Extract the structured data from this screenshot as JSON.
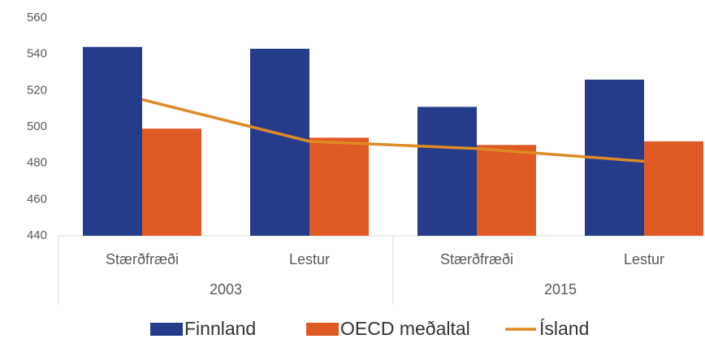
{
  "chart_data": {
    "type": "bar_line",
    "categories": [
      "Stærðfræði",
      "Lestur",
      "Stærðfræði",
      "Lestur"
    ],
    "groups": [
      "2003",
      "2015"
    ],
    "series": [
      {
        "name": "Finnland",
        "type": "bar",
        "color": "#253c8a",
        "values": [
          544,
          543,
          511,
          526
        ]
      },
      {
        "name": "OECD meðaltal",
        "type": "bar",
        "color": "#e05a26",
        "values": [
          499,
          494,
          490,
          492
        ]
      },
      {
        "name": "Ísland",
        "type": "line",
        "color": "#de8b25",
        "values": [
          515,
          492,
          488,
          481
        ]
      }
    ],
    "ylim": [
      440,
      560
    ],
    "yticks": [
      440,
      460,
      480,
      500,
      520,
      540,
      560
    ],
    "legend": "bottom"
  }
}
